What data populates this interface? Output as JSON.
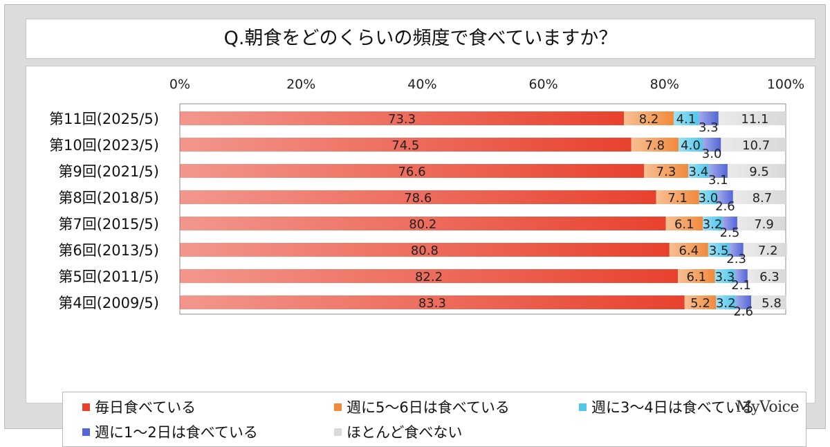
{
  "title": "Q.朝食をどのくらいの頻度で食べていますか？",
  "brand": "MyVoice",
  "chart_data": {
    "type": "bar",
    "orientation": "horizontal",
    "stacked": true,
    "percent_axis": true,
    "xlim": [
      0,
      100
    ],
    "x_ticks": [
      "0%",
      "20%",
      "40%",
      "60%",
      "80%",
      "100%"
    ],
    "x_axis_position": "top",
    "categories": [
      "第11回(2025/5)",
      "第10回(2023/5)",
      "第9回(2021/5)",
      "第8回(2018/5)",
      "第7回(2015/5)",
      "第6回(2013/5)",
      "第5回(2011/5)",
      "第4回(2009/5)"
    ],
    "series": [
      {
        "name": "毎日食べている",
        "color": "#e8422e",
        "values": [
          73.3,
          74.5,
          76.6,
          78.6,
          80.2,
          80.8,
          82.2,
          83.3
        ]
      },
      {
        "name": "週に5～6日は食べている",
        "color": "#f28a3c",
        "values": [
          8.2,
          7.8,
          7.3,
          7.1,
          6.1,
          6.4,
          6.1,
          5.2
        ]
      },
      {
        "name": "週に3～4日は食べている",
        "color": "#4fc8ec",
        "values": [
          4.1,
          4.0,
          3.4,
          3.0,
          3.2,
          3.5,
          3.3,
          3.2
        ]
      },
      {
        "name": "週に1～2日は食べている",
        "color": "#5566d8",
        "values": [
          3.3,
          3.0,
          3.1,
          2.6,
          2.5,
          2.3,
          2.1,
          2.6
        ]
      },
      {
        "name": "ほとんど食べない",
        "color": "#d9d9d9",
        "values": [
          11.1,
          10.7,
          9.5,
          8.7,
          7.9,
          7.2,
          6.3,
          5.8
        ]
      }
    ],
    "legend_position": "bottom",
    "grid": false
  }
}
